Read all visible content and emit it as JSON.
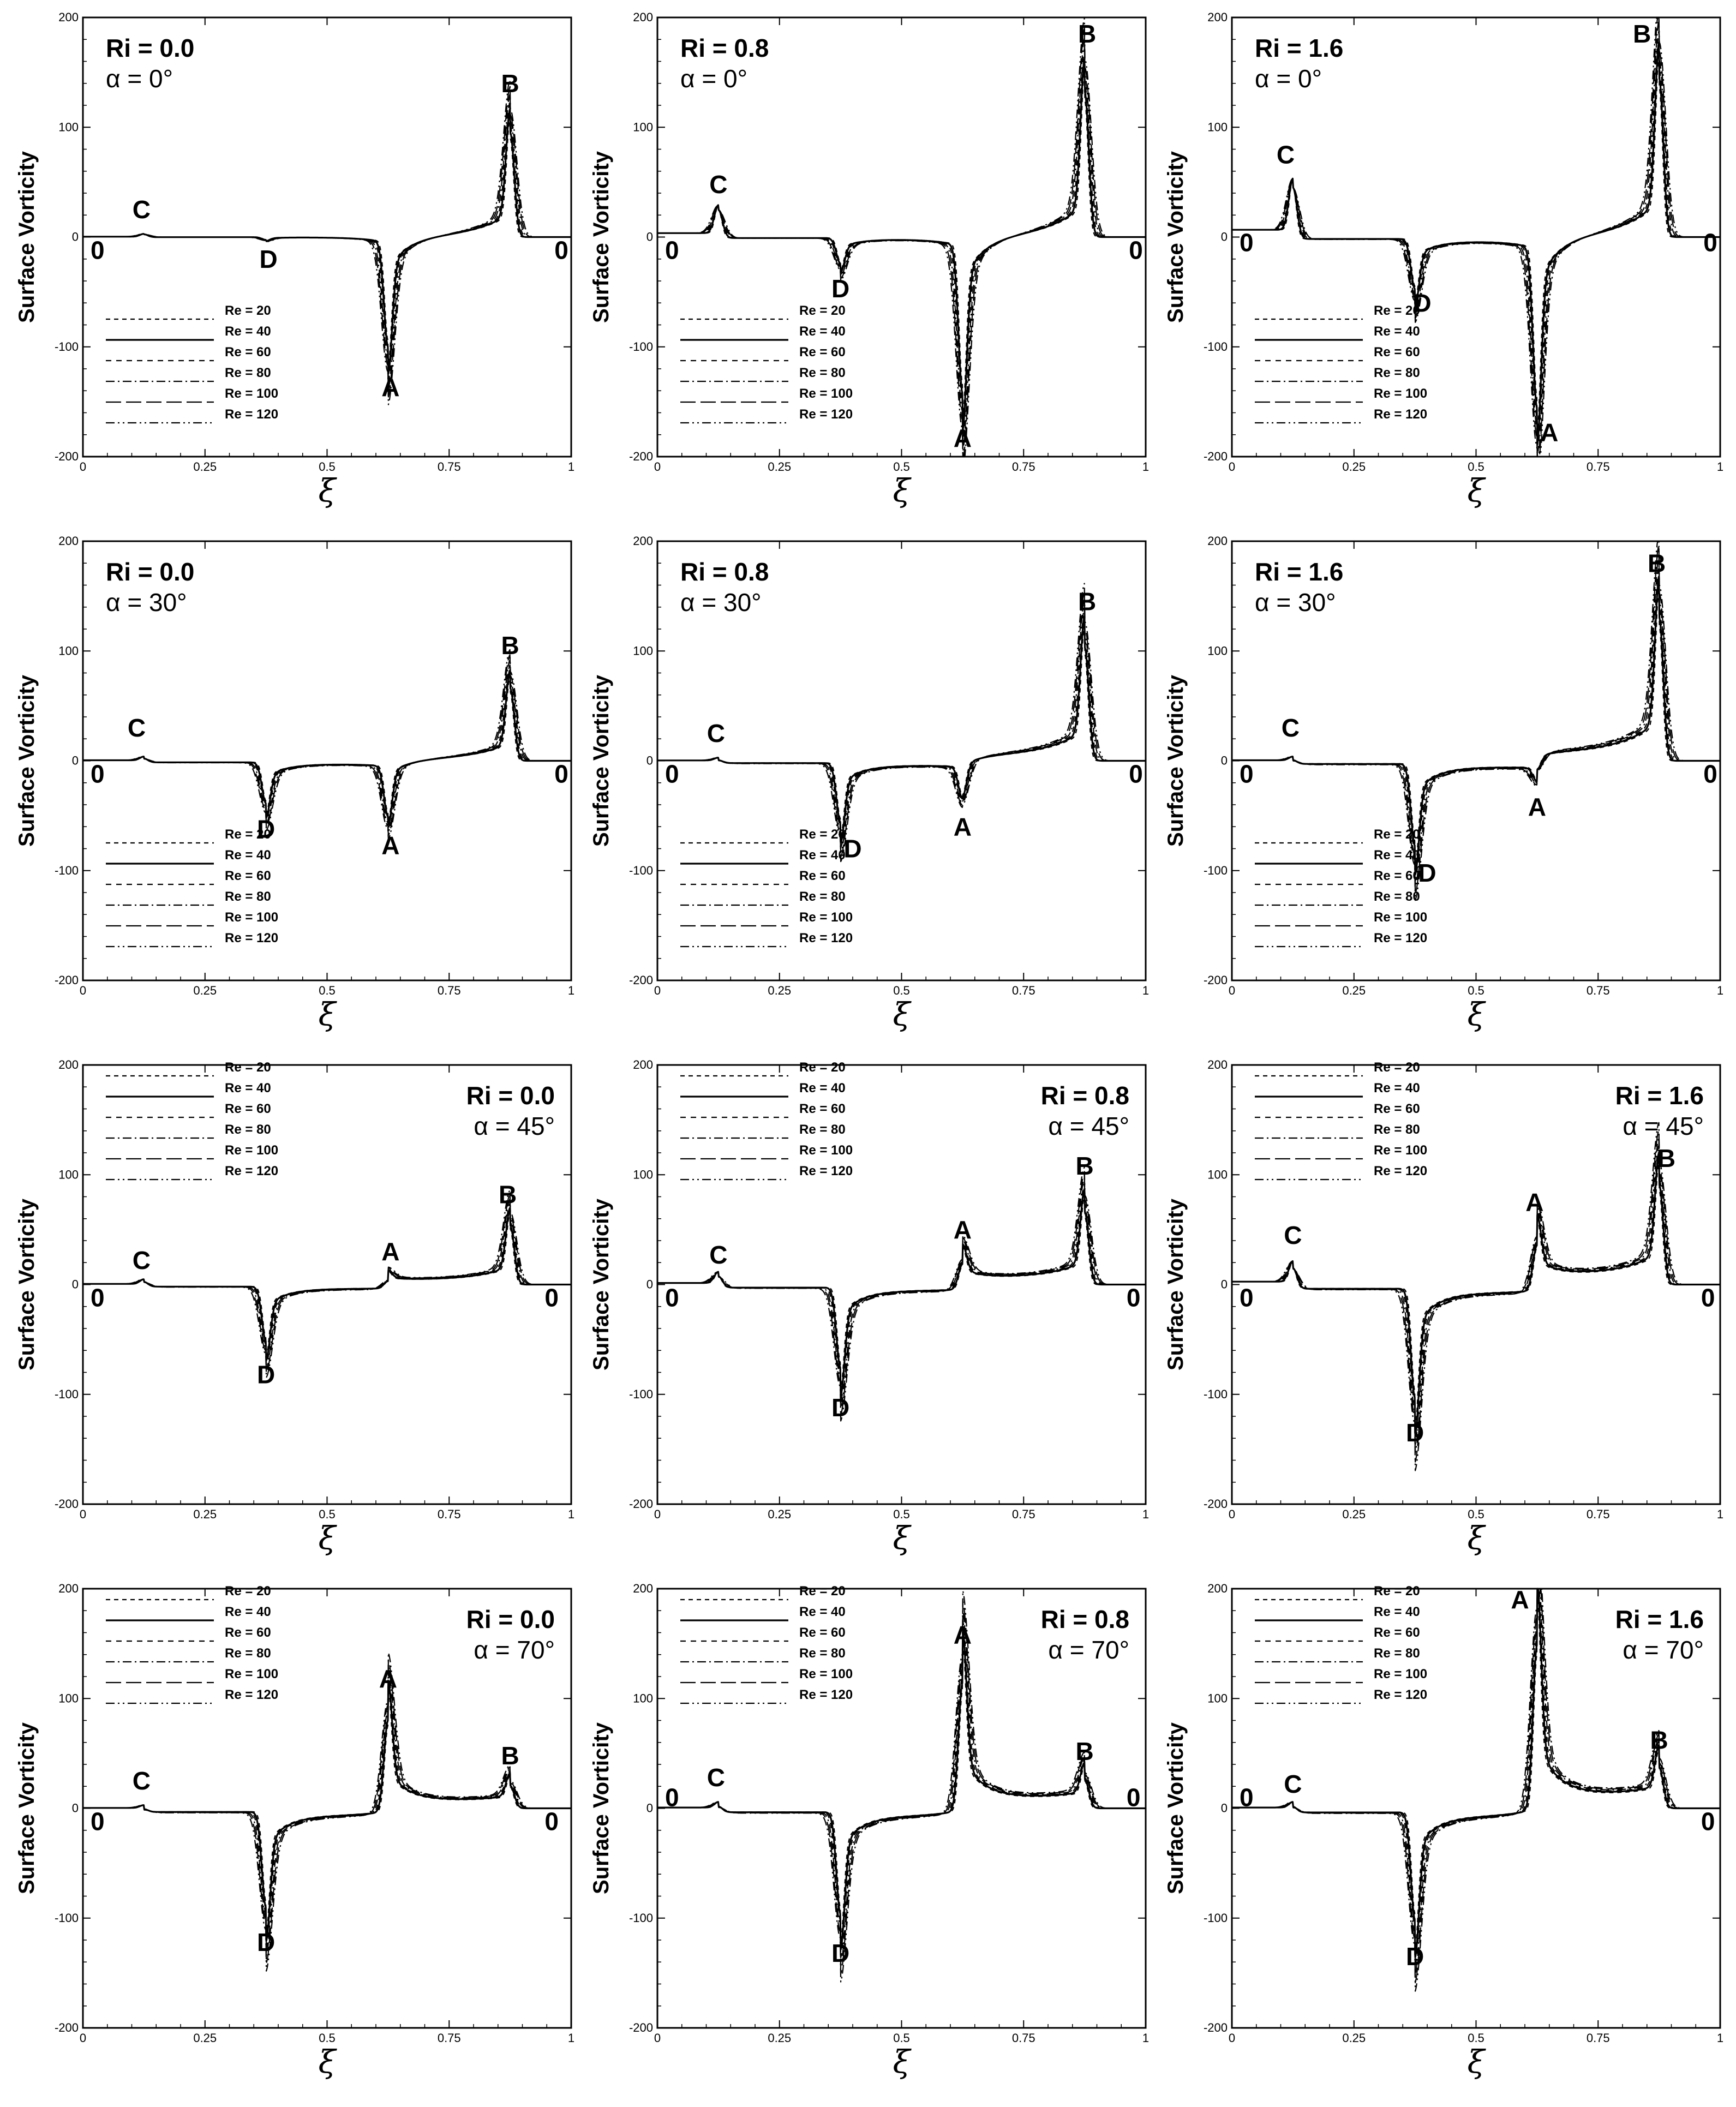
{
  "chart_data": {
    "type": "line",
    "ylabel": "Surface Vorticity",
    "xlabel": "ξ",
    "xlim": [
      0,
      1
    ],
    "ylim": [
      -200,
      200
    ],
    "xticks": [
      "0",
      "0.25",
      "0.5",
      "0.75",
      "1"
    ],
    "yticks": [
      "-200",
      "-100",
      "0",
      "100",
      "200"
    ],
    "series_names": [
      "Re = 20",
      "Re = 40",
      "Re = 60",
      "Re = 80",
      "Re = 100",
      "Re = 120"
    ],
    "panels": [
      {
        "ri": "Ri = 0.0",
        "alpha": "α = 0°",
        "param_pos": "top-left",
        "legend_pos": "bottom-left",
        "peaks": {
          "A": [
            0.625,
            -115
          ],
          "B": [
            0.875,
            115
          ],
          "C": [
            0.125,
            3
          ],
          "D": [
            0.375,
            -3
          ]
        },
        "labels": [
          {
            "t": "C",
            "x": 0.12,
            "y": 25
          },
          {
            "t": "D",
            "x": 0.38,
            "y": -20
          },
          {
            "t": "A",
            "x": 0.63,
            "y": -137
          },
          {
            "t": "B",
            "x": 0.875,
            "y": 140
          },
          {
            "t": "0",
            "x": 0.03,
            "y": -12
          },
          {
            "t": "0",
            "x": 0.98,
            "y": -12
          }
        ]
      },
      {
        "ri": "Ri = 0.8",
        "alpha": "α = 0°",
        "param_pos": "top-left",
        "legend_pos": "bottom-left",
        "peaks": {
          "A": [
            0.625,
            -162
          ],
          "B": [
            0.875,
            160
          ],
          "C": [
            0.125,
            30
          ],
          "D": [
            0.375,
            -28
          ]
        },
        "labels": [
          {
            "t": "C",
            "x": 0.125,
            "y": 48
          },
          {
            "t": "D",
            "x": 0.375,
            "y": -47
          },
          {
            "t": "A",
            "x": 0.625,
            "y": -183
          },
          {
            "t": "B",
            "x": 0.88,
            "y": 185
          },
          {
            "t": "0",
            "x": 0.03,
            "y": -12
          },
          {
            "t": "0",
            "x": 0.98,
            "y": -12
          }
        ]
      },
      {
        "ri": "Ri = 1.6",
        "alpha": "α = 0°",
        "param_pos": "top-left",
        "legend_pos": "bottom-left",
        "peaks": {
          "A": [
            0.625,
            -175
          ],
          "B": [
            0.875,
            175
          ],
          "C": [
            0.125,
            55
          ],
          "D": [
            0.375,
            -55
          ]
        },
        "labels": [
          {
            "t": "C",
            "x": 0.11,
            "y": 75
          },
          {
            "t": "D",
            "x": 0.39,
            "y": -60
          },
          {
            "t": "A",
            "x": 0.65,
            "y": -178
          },
          {
            "t": "B",
            "x": 0.84,
            "y": 185
          },
          {
            "t": "0",
            "x": 0.03,
            "y": -5
          },
          {
            "t": "0",
            "x": 0.98,
            "y": -5
          }
        ]
      },
      {
        "ri": "Ri = 0.0",
        "alpha": "α = 30°",
        "param_pos": "top-left",
        "legend_pos": "bottom-left",
        "peaks": {
          "A": [
            0.625,
            -55
          ],
          "B": [
            0.875,
            80
          ],
          "C": [
            0.11,
            4
          ],
          "D": [
            0.375,
            -45
          ]
        },
        "labels": [
          {
            "t": "C",
            "x": 0.11,
            "y": 30
          },
          {
            "t": "D",
            "x": 0.375,
            "y": -62
          },
          {
            "t": "A",
            "x": 0.63,
            "y": -77
          },
          {
            "t": "B",
            "x": 0.875,
            "y": 105
          },
          {
            "t": "0",
            "x": 0.03,
            "y": -12
          },
          {
            "t": "0",
            "x": 0.98,
            "y": -12
          }
        ]
      },
      {
        "ri": "Ri = 0.8",
        "alpha": "α = 30°",
        "param_pos": "top-left",
        "legend_pos": "bottom-left",
        "peaks": {
          "A": [
            0.625,
            -35
          ],
          "B": [
            0.875,
            125
          ],
          "C": [
            0.12,
            3
          ],
          "D": [
            0.375,
            -65
          ]
        },
        "labels": [
          {
            "t": "C",
            "x": 0.12,
            "y": 25
          },
          {
            "t": "D",
            "x": 0.4,
            "y": -80
          },
          {
            "t": "A",
            "x": 0.625,
            "y": -60
          },
          {
            "t": "B",
            "x": 0.88,
            "y": 145
          },
          {
            "t": "0",
            "x": 0.03,
            "y": -12
          },
          {
            "t": "0",
            "x": 0.98,
            "y": -12
          }
        ]
      },
      {
        "ri": "Ri = 1.6",
        "alpha": "α = 30°",
        "param_pos": "top-left",
        "legend_pos": "bottom-left",
        "peaks": {
          "A": [
            0.625,
            -15
          ],
          "B": [
            0.875,
            158
          ],
          "C": [
            0.12,
            4
          ],
          "D": [
            0.375,
            -90
          ]
        },
        "labels": [
          {
            "t": "C",
            "x": 0.12,
            "y": 30
          },
          {
            "t": "D",
            "x": 0.4,
            "y": -102
          },
          {
            "t": "A",
            "x": 0.625,
            "y": -42
          },
          {
            "t": "B",
            "x": 0.87,
            "y": 180
          },
          {
            "t": "0",
            "x": 0.03,
            "y": -12
          },
          {
            "t": "0",
            "x": 0.98,
            "y": -12
          }
        ]
      },
      {
        "ri": "Ri = 0.0",
        "alpha": "α = 45°",
        "param_pos": "top-right",
        "legend_pos": "top-left",
        "peaks": {
          "A": [
            0.625,
            8
          ],
          "B": [
            0.875,
            65
          ],
          "C": [
            0.12,
            5
          ],
          "D": [
            0.375,
            -60
          ]
        },
        "labels": [
          {
            "t": "C",
            "x": 0.12,
            "y": 22
          },
          {
            "t": "D",
            "x": 0.375,
            "y": -82
          },
          {
            "t": "A",
            "x": 0.63,
            "y": 30
          },
          {
            "t": "B",
            "x": 0.87,
            "y": 82
          },
          {
            "t": "0",
            "x": 0.03,
            "y": -12
          },
          {
            "t": "0",
            "x": 0.96,
            "y": -12
          }
        ]
      },
      {
        "ri": "Ri = 0.8",
        "alpha": "α = 45°",
        "param_pos": "top-right",
        "legend_pos": "top-left",
        "peaks": {
          "A": [
            0.625,
            28
          ],
          "B": [
            0.875,
            80
          ],
          "C": [
            0.125,
            12
          ],
          "D": [
            0.375,
            -88
          ]
        },
        "labels": [
          {
            "t": "C",
            "x": 0.125,
            "y": 27
          },
          {
            "t": "D",
            "x": 0.375,
            "y": -112
          },
          {
            "t": "A",
            "x": 0.625,
            "y": 50
          },
          {
            "t": "B",
            "x": 0.875,
            "y": 108
          },
          {
            "t": "0",
            "x": 0.03,
            "y": -12
          },
          {
            "t": "0",
            "x": 0.975,
            "y": -12
          }
        ]
      },
      {
        "ri": "Ri = 1.6",
        "alpha": "α = 45°",
        "param_pos": "top-right",
        "legend_pos": "top-left",
        "peaks": {
          "A": [
            0.625,
            50
          ],
          "B": [
            0.875,
            110
          ],
          "C": [
            0.125,
            22
          ],
          "D": [
            0.375,
            -120
          ]
        },
        "labels": [
          {
            "t": "C",
            "x": 0.125,
            "y": 45
          },
          {
            "t": "D",
            "x": 0.375,
            "y": -135
          },
          {
            "t": "A",
            "x": 0.62,
            "y": 75
          },
          {
            "t": "B",
            "x": 0.89,
            "y": 115
          },
          {
            "t": "0",
            "x": 0.03,
            "y": -12
          },
          {
            "t": "0",
            "x": 0.975,
            "y": -12
          }
        ]
      },
      {
        "ri": "Ri = 0.0",
        "alpha": "α = 70°",
        "param_pos": "top-right",
        "legend_pos": "top-left",
        "peaks": {
          "A": [
            0.625,
            100
          ],
          "B": [
            0.875,
            25
          ],
          "C": [
            0.12,
            3
          ],
          "D": [
            0.375,
            -105
          ]
        },
        "labels": [
          {
            "t": "C",
            "x": 0.12,
            "y": 25
          },
          {
            "t": "D",
            "x": 0.375,
            "y": -122
          },
          {
            "t": "A",
            "x": 0.625,
            "y": 118
          },
          {
            "t": "B",
            "x": 0.875,
            "y": 48
          },
          {
            "t": "0",
            "x": 0.03,
            "y": -12
          },
          {
            "t": "0",
            "x": 0.96,
            "y": -12
          }
        ]
      },
      {
        "ri": "Ri = 0.8",
        "alpha": "α = 70°",
        "param_pos": "top-right",
        "legend_pos": "top-left",
        "peaks": {
          "A": [
            0.625,
            140
          ],
          "B": [
            0.875,
            32
          ],
          "C": [
            0.12,
            6
          ],
          "D": [
            0.375,
            -112
          ]
        },
        "labels": [
          {
            "t": "C",
            "x": 0.12,
            "y": 28
          },
          {
            "t": "D",
            "x": 0.375,
            "y": -132
          },
          {
            "t": "A",
            "x": 0.625,
            "y": 158
          },
          {
            "t": "B",
            "x": 0.875,
            "y": 52
          },
          {
            "t": "0",
            "x": 0.03,
            "y": 10
          },
          {
            "t": "0",
            "x": 0.975,
            "y": 10
          }
        ]
      },
      {
        "ri": "Ri = 1.6",
        "alpha": "α = 70°",
        "param_pos": "top-right",
        "legend_pos": "top-left",
        "peaks": {
          "A": [
            0.625,
            180
          ],
          "B": [
            0.875,
            45
          ],
          "C": [
            0.12,
            6
          ],
          "D": [
            0.375,
            -118
          ]
        },
        "labels": [
          {
            "t": "C",
            "x": 0.125,
            "y": 22
          },
          {
            "t": "D",
            "x": 0.375,
            "y": -135
          },
          {
            "t": "A",
            "x": 0.59,
            "y": 190
          },
          {
            "t": "B",
            "x": 0.875,
            "y": 62
          },
          {
            "t": "0",
            "x": 0.03,
            "y": 10
          },
          {
            "t": "0",
            "x": 0.975,
            "y": -12
          }
        ]
      }
    ]
  }
}
